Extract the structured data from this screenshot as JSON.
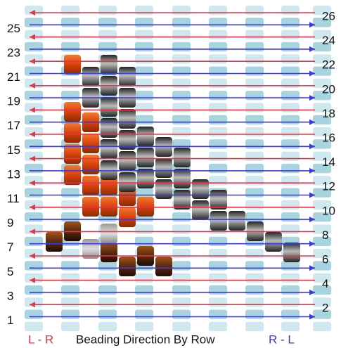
{
  "rows": [
    1,
    2,
    3,
    4,
    5,
    6,
    7,
    8,
    9,
    10,
    11,
    12,
    13,
    14,
    15,
    16,
    17,
    18,
    19,
    20,
    21,
    22,
    23,
    24,
    25,
    26
  ],
  "footer": {
    "left": "L - R",
    "center": "Beading Direction By Row",
    "right": "R - L"
  }
}
